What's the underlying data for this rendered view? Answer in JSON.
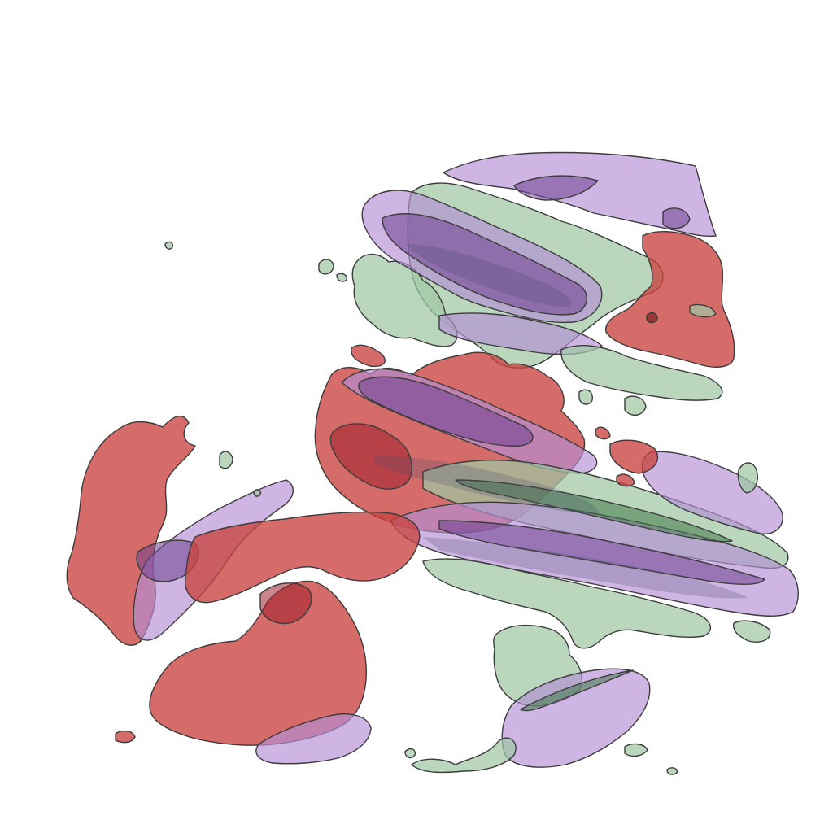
{
  "scene": {
    "description_kind": "3d-isosurface-render",
    "background_color": "#ffffff",
    "surface_colors": {
      "green": "#9fc7a3",
      "purple": "#b58fd6",
      "red": "#c9423f",
      "outline": "#3c3c3c"
    }
  }
}
